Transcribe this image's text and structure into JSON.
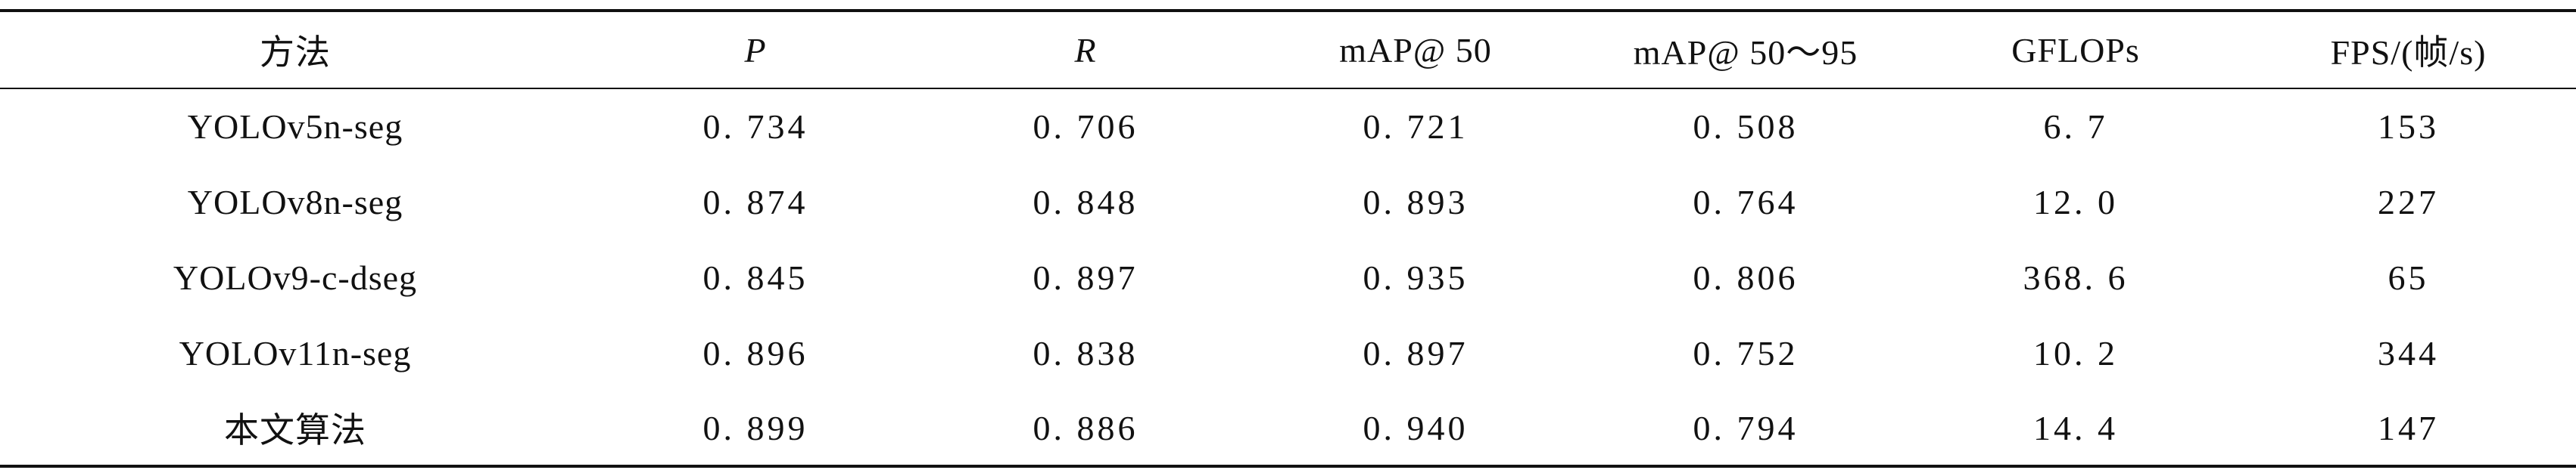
{
  "table": {
    "headers": [
      "方法",
      "P",
      "R",
      "mAP@ 50",
      "mAP@ 50～95",
      "GFLOPs",
      "FPS/(帧/s)"
    ],
    "rows": [
      [
        "YOLOv5n-seg",
        "0. 734",
        "0. 706",
        "0. 721",
        "0. 508",
        "6. 7",
        "153"
      ],
      [
        "YOLOv8n-seg",
        "0. 874",
        "0. 848",
        "0. 893",
        "0. 764",
        "12. 0",
        "227"
      ],
      [
        "YOLOv9-c-dseg",
        "0. 845",
        "0. 897",
        "0. 935",
        "0. 806",
        "368. 6",
        "65"
      ],
      [
        "YOLOv11n-seg",
        "0. 896",
        "0. 838",
        "0. 897",
        "0. 752",
        "10. 2",
        "344"
      ],
      [
        "本文算法",
        "0. 899",
        "0. 886",
        "0. 940",
        "0. 794",
        "14. 4",
        "147"
      ]
    ]
  }
}
